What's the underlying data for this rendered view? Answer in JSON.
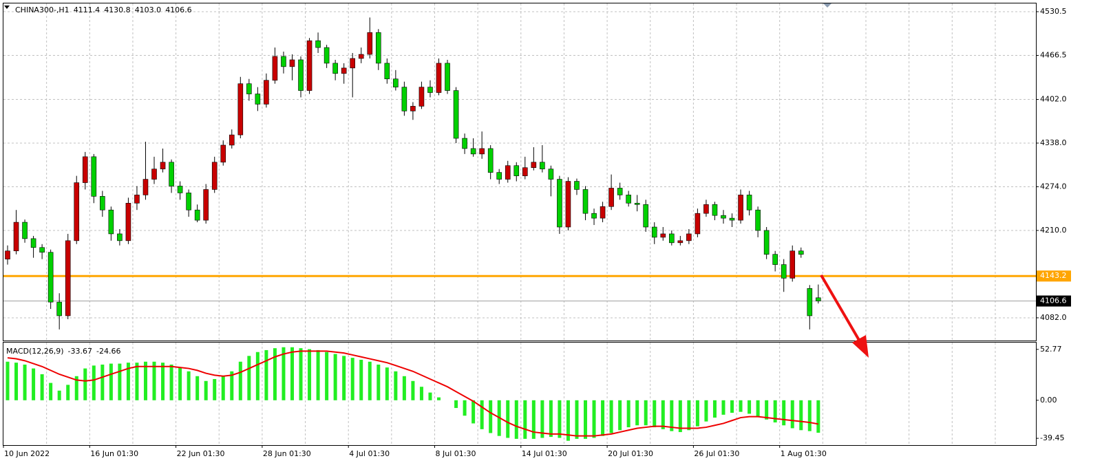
{
  "chart_data": [
    {
      "type": "candlestick",
      "title": "CHINA300-,H1",
      "header": [
        {
          "value": 4111.4,
          "label": "4111.4"
        },
        {
          "value": 4130.8,
          "label": "4130.8"
        },
        {
          "value": 4103.0,
          "label": "4103.0"
        },
        {
          "value": 4106.6,
          "label": "4106.6"
        }
      ],
      "categories": [
        "10 Jun 2022",
        null,
        null,
        null,
        null,
        null,
        null,
        null,
        null,
        null,
        "16 Jun 01:30",
        null,
        null,
        null,
        null,
        null,
        null,
        null,
        null,
        null,
        "22 Jun 01:30",
        null,
        null,
        null,
        null,
        null,
        null,
        null,
        null,
        null,
        "28 Jun 01:30",
        null,
        null,
        null,
        null,
        null,
        null,
        null,
        null,
        null,
        "4 Jul 01:30",
        null,
        null,
        null,
        null,
        null,
        null,
        null,
        null,
        null,
        "8 Jul 01:30",
        null,
        null,
        null,
        null,
        null,
        null,
        null,
        null,
        null,
        "14 Jul 01:30",
        null,
        null,
        null,
        null,
        null,
        null,
        null,
        null,
        null,
        "20 Jul 01:30",
        null,
        null,
        null,
        null,
        null,
        null,
        null,
        null,
        null,
        "26 Jul 01:30",
        null,
        null,
        null,
        null,
        null,
        null,
        null,
        null,
        null,
        "1 Aug 01:30",
        null,
        null,
        null,
        null
      ],
      "open": [
        4168,
        4180,
        4222,
        4198,
        4185,
        4178,
        4105,
        4085,
        4195,
        4280,
        4318,
        4260,
        4240,
        4205,
        4195,
        4250,
        4262,
        4285,
        4300,
        4310,
        4275,
        4265,
        4240,
        4225,
        4270,
        4310,
        4335,
        4350,
        4425,
        4410,
        4395,
        4430,
        4465,
        4450,
        4460,
        4415,
        4488,
        4478,
        4455,
        4440,
        4448,
        4462,
        4468,
        4500,
        4455,
        4432,
        4420,
        4385,
        4392,
        4420,
        4412,
        4455,
        4415,
        4345,
        4330,
        4322,
        4330,
        4295,
        4285,
        4305,
        4290,
        4302,
        4310,
        4300,
        4285,
        4215,
        4282,
        4270,
        4235,
        4228,
        4245,
        4272,
        4262,
        4250,
        4248,
        4215,
        4200,
        4205,
        4192,
        4195,
        4205,
        4235,
        4248,
        4232,
        4228,
        4225,
        4262,
        4240,
        4210,
        4175,
        4160,
        4140,
        4180,
        4125,
        4111.4
      ],
      "high": [
        4188,
        4240,
        4226,
        4202,
        4190,
        4182,
        4118,
        4205,
        4290,
        4325,
        4322,
        4268,
        4245,
        4212,
        4258,
        4275,
        4340,
        4318,
        4330,
        4314,
        4282,
        4270,
        4248,
        4278,
        4318,
        4342,
        4358,
        4435,
        4432,
        4420,
        4440,
        4478,
        4472,
        4468,
        4465,
        4492,
        4500,
        4482,
        4460,
        4455,
        4470,
        4478,
        4522,
        4505,
        4462,
        4445,
        4428,
        4398,
        4428,
        4430,
        4462,
        4460,
        4420,
        4352,
        4345,
        4355,
        4335,
        4300,
        4312,
        4310,
        4318,
        4332,
        4335,
        4305,
        4290,
        4288,
        4286,
        4275,
        4242,
        4252,
        4292,
        4280,
        4268,
        4262,
        4255,
        4222,
        4215,
        4210,
        4202,
        4212,
        4242,
        4255,
        4252,
        4240,
        4235,
        4270,
        4268,
        4245,
        4215,
        4180,
        4168,
        4188,
        4185,
        4130,
        4130.8
      ],
      "low": [
        4160,
        4175,
        4192,
        4170,
        4168,
        4095,
        4065,
        4080,
        4190,
        4270,
        4250,
        4230,
        4195,
        4188,
        4190,
        4240,
        4255,
        4278,
        4295,
        4265,
        4255,
        4230,
        4222,
        4220,
        4265,
        4305,
        4330,
        4345,
        4400,
        4385,
        4390,
        4425,
        4440,
        4430,
        4405,
        4410,
        4470,
        4448,
        4430,
        4425,
        4405,
        4455,
        4462,
        4445,
        4425,
        4415,
        4378,
        4372,
        4388,
        4405,
        4408,
        4410,
        4338,
        4322,
        4318,
        4315,
        4285,
        4278,
        4280,
        4282,
        4285,
        4298,
        4295,
        4260,
        4205,
        4210,
        4262,
        4225,
        4218,
        4222,
        4240,
        4255,
        4245,
        4238,
        4208,
        4190,
        4195,
        4188,
        4188,
        4190,
        4200,
        4230,
        4225,
        4220,
        4215,
        4220,
        4232,
        4200,
        4168,
        4150,
        4120,
        4135,
        4170,
        4065,
        4103
      ],
      "close": [
        4180,
        4222,
        4198,
        4185,
        4178,
        4105,
        4085,
        4195,
        4280,
        4318,
        4260,
        4240,
        4205,
        4195,
        4250,
        4262,
        4285,
        4300,
        4310,
        4275,
        4265,
        4240,
        4225,
        4270,
        4310,
        4335,
        4350,
        4425,
        4410,
        4395,
        4430,
        4465,
        4450,
        4460,
        4415,
        4488,
        4478,
        4455,
        4440,
        4448,
        4462,
        4468,
        4500,
        4455,
        4432,
        4420,
        4385,
        4392,
        4420,
        4412,
        4455,
        4415,
        4345,
        4330,
        4322,
        4330,
        4295,
        4285,
        4305,
        4290,
        4302,
        4310,
        4300,
        4285,
        4215,
        4282,
        4270,
        4235,
        4228,
        4245,
        4272,
        4262,
        4250,
        4248,
        4215,
        4200,
        4205,
        4192,
        4195,
        4205,
        4235,
        4248,
        4232,
        4228,
        4225,
        4262,
        4240,
        4210,
        4175,
        4160,
        4140,
        4180,
        4175,
        4085,
        4106.6
      ],
      "up_color": "#c80000",
      "down_color": "#00d000",
      "level": 4143.2,
      "level_color": "#ffa500",
      "ylim": [
        4048.7,
        4542.6
      ],
      "yticks": [
        4530.5,
        4466.5,
        {
          "value": 4402,
          "label": "4402.0"
        },
        {
          "value": 4338,
          "label": "4338.0"
        },
        {
          "value": 4274,
          "label": "4274.0"
        },
        {
          "value": 4210,
          "label": "4210.0"
        },
        {
          "value": 4082,
          "label": "4082.0"
        }
      ],
      "grid": true
    },
    {
      "type": "macd",
      "title": "MACD(12,26,9)",
      "series": [
        {
          "color": "#22ee22",
          "values": [
            40,
            39,
            37,
            33,
            27,
            18,
            10,
            16,
            25,
            33,
            36,
            37,
            38,
            38,
            39,
            39,
            40,
            40,
            39,
            37,
            34,
            30,
            25,
            20,
            22,
            25,
            30,
            40,
            46,
            50,
            52,
            54,
            55,
            55,
            54,
            53,
            52,
            50,
            48,
            46,
            44,
            42,
            40,
            37,
            34,
            30,
            25,
            20,
            14,
            8,
            3,
            0,
            -8,
            -16,
            -24,
            -30,
            -34,
            -37,
            -39,
            -40,
            -40,
            -40,
            -39,
            -38,
            -39,
            -42,
            -40,
            -40,
            -39,
            -37,
            -34,
            -31,
            -28,
            -26,
            -26,
            -28,
            -30,
            -32,
            -33,
            -31,
            -27,
            -22,
            -18,
            -15,
            -13,
            -12,
            -14,
            -17,
            -20,
            -23,
            -26,
            -29,
            -31,
            -32,
            -33.67
          ]
        },
        {
          "color": "#ee0000",
          "values": [
            44,
            43,
            41,
            38,
            35,
            31,
            27,
            24,
            21,
            20,
            21,
            24,
            27,
            30,
            33,
            35,
            35,
            35,
            35,
            35,
            34,
            33,
            31,
            28,
            26,
            25,
            26,
            29,
            33,
            37,
            41,
            45,
            48,
            50,
            51,
            51,
            51,
            51,
            50,
            49,
            47,
            45,
            43,
            41,
            39,
            36,
            33,
            30,
            26,
            22,
            18,
            14,
            9,
            4,
            -1,
            -7,
            -13,
            -18,
            -23,
            -27,
            -30,
            -33,
            -34,
            -35,
            -35,
            -36,
            -37,
            -37,
            -37,
            -36,
            -35,
            -33,
            -31,
            -29,
            -28,
            -27,
            -27,
            -28,
            -29,
            -29,
            -29,
            -28,
            -26,
            -24,
            -21,
            -18,
            -17,
            -17,
            -18,
            -19,
            -20,
            -21,
            -22,
            -23,
            -24.66
          ]
        }
      ],
      "ylim": [
        -46.5,
        59.8
      ],
      "yticks": [
        52.77,
        {
          "value": 0,
          "label": "0.00"
        },
        -39.45
      ]
    }
  ]
}
